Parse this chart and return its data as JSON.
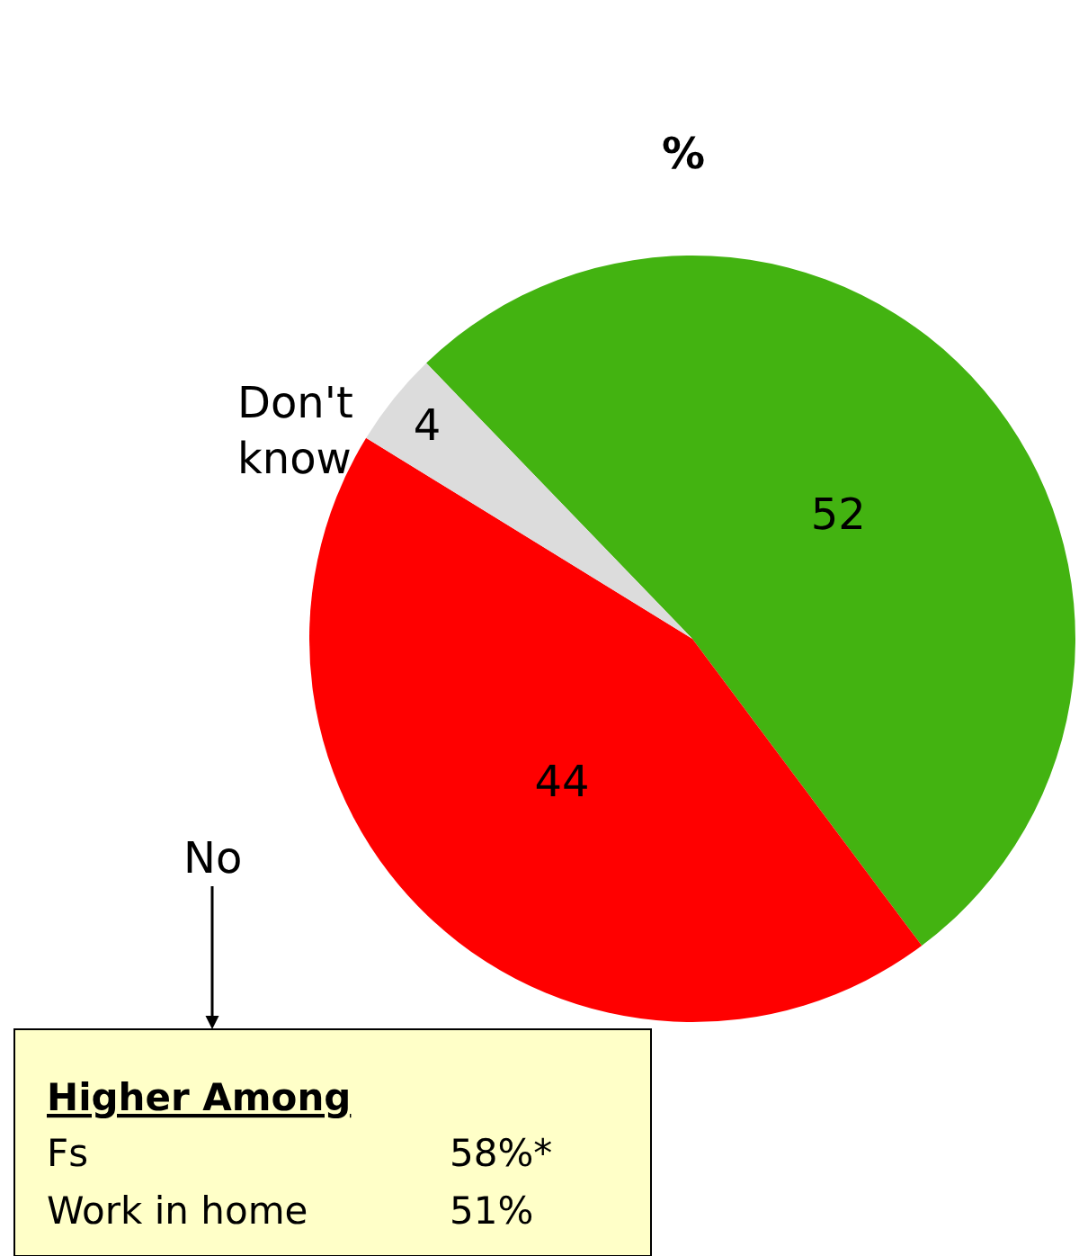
{
  "chart_data": {
    "type": "pie",
    "title": "%",
    "categories": [
      null,
      "No",
      "Don't know"
    ],
    "values": [
      52,
      44,
      4
    ],
    "colors": [
      "#43b311",
      "#ff0000",
      "#dcdcdc"
    ],
    "data_labels": true,
    "annotations": [
      "Higher Among",
      "Fs",
      "58%*",
      "Work in home",
      "51%"
    ]
  }
}
